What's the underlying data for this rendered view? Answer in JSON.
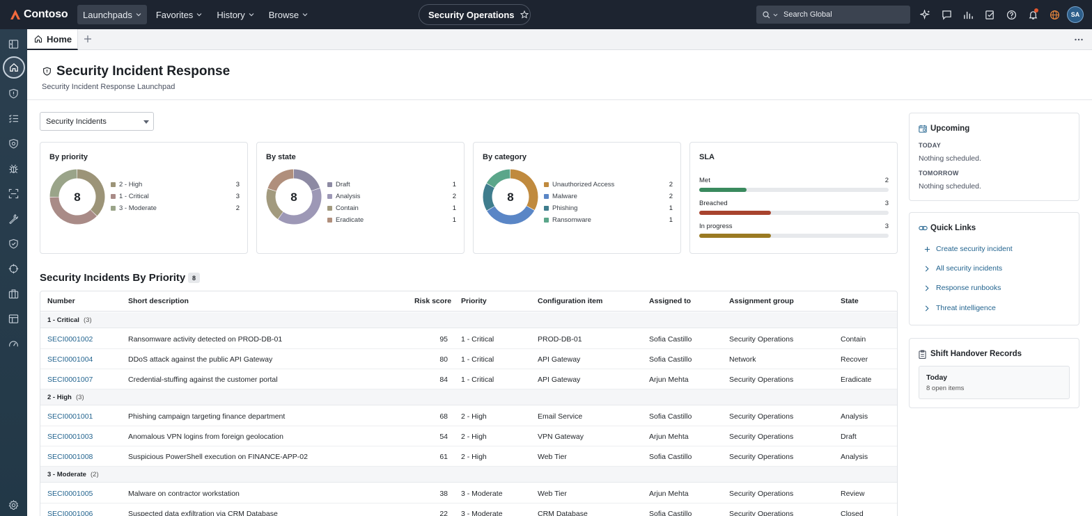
{
  "app": {
    "brand": "Contoso"
  },
  "nav": {
    "items": [
      {
        "label": "Launchpads",
        "active": true
      },
      {
        "label": "Favorites",
        "active": false
      },
      {
        "label": "History",
        "active": false
      },
      {
        "label": "Browse",
        "active": false
      }
    ]
  },
  "workspace": {
    "label": "Security Operations"
  },
  "search": {
    "placeholder": "Search Global"
  },
  "user": {
    "initials": "SA"
  },
  "tabs": {
    "home": "Home"
  },
  "header": {
    "title": "Security Incident Response",
    "subtitle": "Security Incident Response Launchpad"
  },
  "filter": {
    "selected": "Security Incidents"
  },
  "colors": {
    "topbar": "#1d2430",
    "rail": "#2c3e50",
    "link": "#23648f",
    "met": "#3a8a5e",
    "breached": "#a8432e",
    "in_progress": "#9a7a22"
  },
  "cards": {
    "priority": {
      "title": "By priority",
      "total": "8",
      "items": [
        {
          "label": "2 - High",
          "value": 3,
          "color": "#9c9478"
        },
        {
          "label": "1 - Critical",
          "value": 3,
          "color": "#a98b87"
        },
        {
          "label": "3 - Moderate",
          "value": 2,
          "color": "#9aa489"
        }
      ]
    },
    "state": {
      "title": "By state",
      "total": "8",
      "items": [
        {
          "label": "Draft",
          "value": 1,
          "color": "#8d8aa3"
        },
        {
          "label": "Analysis",
          "value": 2,
          "color": "#9d98b6"
        },
        {
          "label": "Contain",
          "value": 1,
          "color": "#a29a7e"
        },
        {
          "label": "Eradicate",
          "value": 1,
          "color": "#b08f7c"
        }
      ]
    },
    "category": {
      "title": "By category",
      "total": "8",
      "items": [
        {
          "label": "Unauthorized Access",
          "value": 2,
          "color": "#c08a3e"
        },
        {
          "label": "Malware",
          "value": 2,
          "color": "#5a86c6"
        },
        {
          "label": "Phishing",
          "value": 1,
          "color": "#3f7d8d"
        },
        {
          "label": "Ransomware",
          "value": 1,
          "color": "#5ba68a"
        }
      ]
    },
    "sla": {
      "title": "SLA",
      "items": [
        {
          "label": "Met",
          "value": 2,
          "fill": 0.25,
          "color": "#3a8a5e"
        },
        {
          "label": "Breached",
          "value": 3,
          "fill": 0.38,
          "color": "#a8432e"
        },
        {
          "label": "In progress",
          "value": 3,
          "fill": 0.38,
          "color": "#9a7a22"
        }
      ]
    }
  },
  "table": {
    "title": "Security Incidents By Priority",
    "count": "8",
    "columns": [
      "Number",
      "Short description",
      "Risk score",
      "Priority",
      "Configuration item",
      "Assigned to",
      "Assignment group",
      "State"
    ],
    "groups": [
      {
        "label": "1 - Critical",
        "count": "(3)",
        "rows": [
          [
            "SECI0001002",
            "Ransomware activity detected on PROD-DB-01",
            "95",
            "1 - Critical",
            "PROD-DB-01",
            "Sofia Castillo",
            "Security Operations",
            "Contain"
          ],
          [
            "SECI0001004",
            "DDoS attack against the public API Gateway",
            "80",
            "1 - Critical",
            "API Gateway",
            "Sofia Castillo",
            "Network",
            "Recover"
          ],
          [
            "SECI0001007",
            "Credential-stuffing against the customer portal",
            "84",
            "1 - Critical",
            "API Gateway",
            "Arjun Mehta",
            "Security Operations",
            "Eradicate"
          ]
        ]
      },
      {
        "label": "2 - High",
        "count": "(3)",
        "rows": [
          [
            "SECI0001001",
            "Phishing campaign targeting finance department",
            "68",
            "2 - High",
            "Email Service",
            "Sofia Castillo",
            "Security Operations",
            "Analysis"
          ],
          [
            "SECI0001003",
            "Anomalous VPN logins from foreign geolocation",
            "54",
            "2 - High",
            "VPN Gateway",
            "Arjun Mehta",
            "Security Operations",
            "Draft"
          ],
          [
            "SECI0001008",
            "Suspicious PowerShell execution on FINANCE-APP-02",
            "61",
            "2 - High",
            "Web Tier",
            "Sofia Castillo",
            "Security Operations",
            "Analysis"
          ]
        ]
      },
      {
        "label": "3 - Moderate",
        "count": "(2)",
        "rows": [
          [
            "SECI0001005",
            "Malware on contractor workstation",
            "38",
            "3 - Moderate",
            "Web Tier",
            "Arjun Mehta",
            "Security Operations",
            "Review"
          ],
          [
            "SECI0001006",
            "Suspected data exfiltration via CRM Database",
            "22",
            "3 - Moderate",
            "CRM Database",
            "Sofia Castillo",
            "Security Operations",
            "Closed"
          ]
        ]
      }
    ]
  },
  "upcoming": {
    "title": "Upcoming",
    "today_label": "TODAY",
    "today_text": "Nothing scheduled.",
    "tomorrow_label": "TOMORROW",
    "tomorrow_text": "Nothing scheduled."
  },
  "quick_links": {
    "title": "Quick Links",
    "items": [
      {
        "label": "Create security incident",
        "icon": "plus-icon"
      },
      {
        "label": "All security incidents",
        "icon": "chevron-right-icon"
      },
      {
        "label": "Response runbooks",
        "icon": "chevron-right-icon"
      },
      {
        "label": "Threat intelligence",
        "icon": "chevron-right-icon"
      }
    ]
  },
  "handover": {
    "title": "Shift Handover Records",
    "day": "Today",
    "detail": "8 open items"
  }
}
